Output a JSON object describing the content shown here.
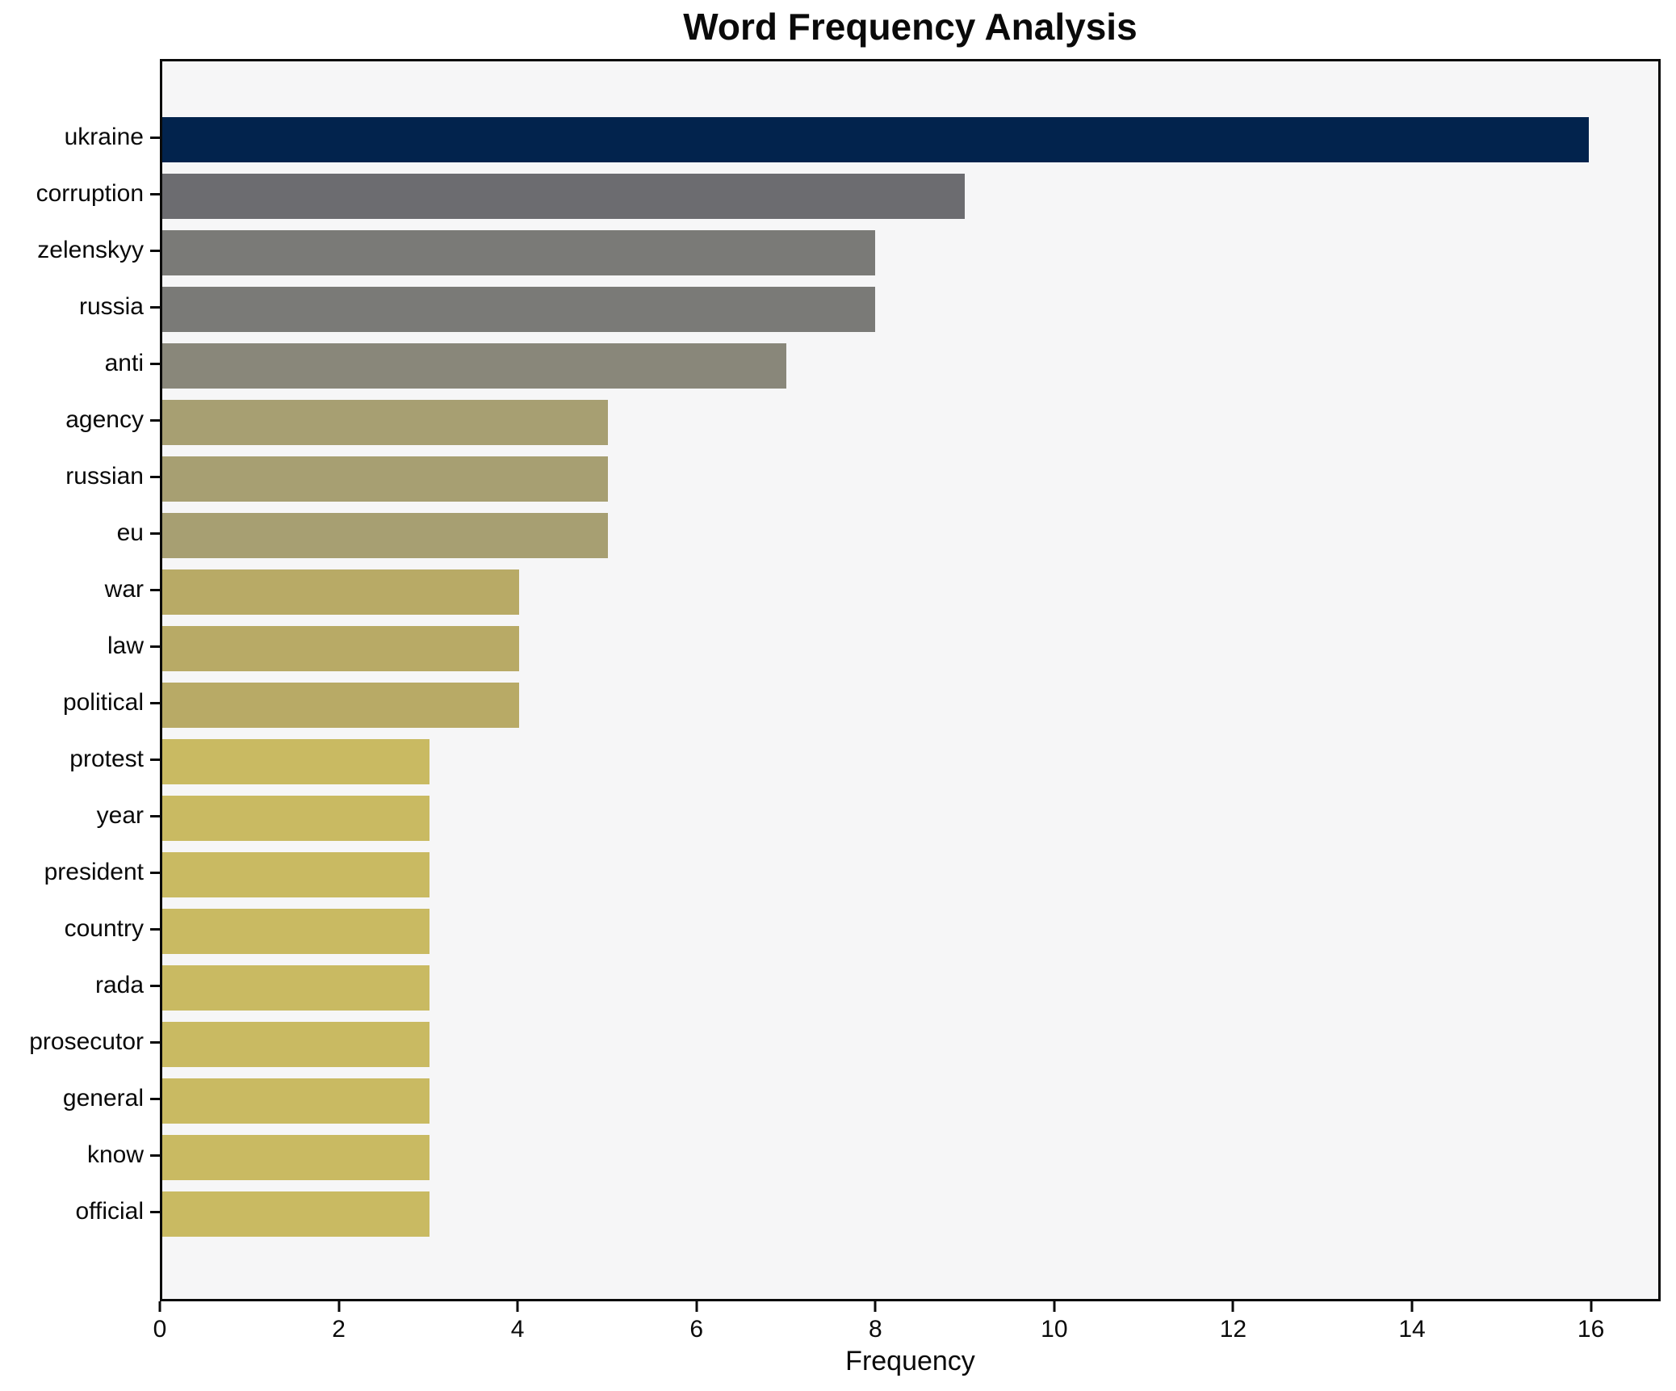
{
  "chart_data": {
    "type": "bar",
    "orientation": "horizontal",
    "title": "Word Frequency Analysis",
    "xlabel": "Frequency",
    "ylabel": "",
    "categories": [
      "ukraine",
      "corruption",
      "zelenskyy",
      "russia",
      "anti",
      "agency",
      "russian",
      "eu",
      "war",
      "law",
      "political",
      "protest",
      "year",
      "president",
      "country",
      "rada",
      "prosecutor",
      "general",
      "know",
      "official"
    ],
    "values": [
      16,
      9,
      8,
      8,
      7,
      5,
      5,
      5,
      4,
      4,
      4,
      3,
      3,
      3,
      3,
      3,
      3,
      3,
      3,
      3
    ],
    "bar_colors": [
      "#02234d",
      "#6c6c70",
      "#7a7a77",
      "#7a7a77",
      "#89877a",
      "#a79f72",
      "#a79f72",
      "#a79f72",
      "#b8aa66",
      "#b8aa66",
      "#b8aa66",
      "#c9ba62",
      "#c9ba62",
      "#c9ba62",
      "#c9ba62",
      "#c9ba62",
      "#c9ba62",
      "#c9ba62",
      "#c9ba62",
      "#c9ba62"
    ],
    "xlim": [
      0,
      16.78
    ],
    "x_ticks": [
      0,
      2,
      4,
      6,
      8,
      10,
      12,
      14,
      16
    ],
    "grid": false,
    "legend_position": "none",
    "plot_background": "#f6f6f7",
    "figure_background": "#ffffff",
    "spine_color": "#0a0a0a"
  }
}
